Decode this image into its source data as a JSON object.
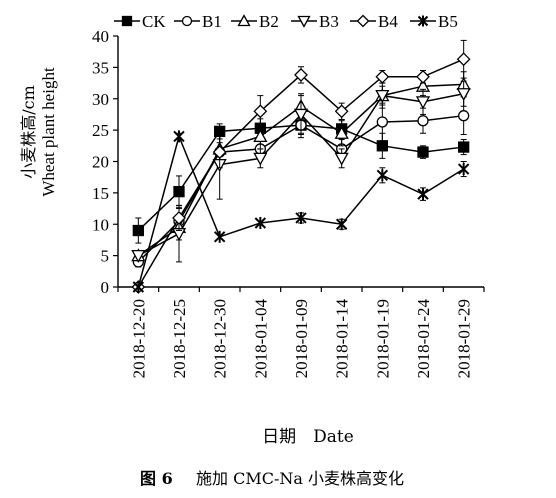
{
  "caption": {
    "figure_no": "图 6",
    "text": "施加 CMC-Na 小麦株高变化"
  },
  "chart_data": {
    "type": "line",
    "xlabel": "日期　Date",
    "ylabel_cn": "小麦株高/cm",
    "ylabel_en": "Wheat plant height",
    "ylim": [
      0,
      40
    ],
    "yticks": [
      0,
      5,
      10,
      15,
      20,
      25,
      30,
      35,
      40
    ],
    "categories": [
      "2018-12-20",
      "2018-12-25",
      "2018-12-30",
      "2018-01-04",
      "2018-01-09",
      "2018-01-14",
      "2018-01-19",
      "2018-01-24",
      "2018-01-29"
    ],
    "legend_position": "top",
    "series": [
      {
        "name": "CK",
        "marker": "square-filled",
        "values": [
          9.0,
          15.2,
          24.8,
          25.3,
          25.8,
          25.2,
          22.5,
          21.5,
          22.3
        ],
        "errors": [
          2.0,
          2.5,
          1.2,
          1.5,
          1.5,
          1.5,
          2.0,
          1.0,
          1.2
        ]
      },
      {
        "name": "B1",
        "marker": "circle-open",
        "values": [
          4.0,
          10.5,
          21.5,
          22.0,
          25.8,
          22.0,
          26.3,
          26.5,
          27.3
        ],
        "errors": [
          0.8,
          2.0,
          1.5,
          1.5,
          2.0,
          1.5,
          3.0,
          2.0,
          3.0
        ]
      },
      {
        "name": "B2",
        "marker": "triangle-up-open",
        "values": [
          5.0,
          9.5,
          22.0,
          24.0,
          28.8,
          24.5,
          30.5,
          32.0,
          32.3
        ],
        "errors": [
          0.8,
          2.0,
          2.0,
          2.0,
          2.0,
          2.0,
          1.5,
          1.5,
          2.0
        ]
      },
      {
        "name": "B3",
        "marker": "triangle-down-open",
        "values": [
          5.0,
          8.5,
          19.5,
          20.5,
          27.5,
          20.5,
          30.5,
          29.5,
          30.8
        ],
        "errors": [
          0.8,
          4.5,
          5.5,
          1.5,
          3.0,
          1.5,
          2.0,
          2.0,
          2.0
        ]
      },
      {
        "name": "B4",
        "marker": "diamond-open",
        "values": [
          0,
          11.0,
          21.5,
          28.0,
          33.8,
          28.0,
          33.5,
          33.5,
          36.3
        ],
        "errors": [
          0,
          2.0,
          2.5,
          2.5,
          1.3,
          1.3,
          1.0,
          1.0,
          3.0
        ]
      },
      {
        "name": "B5",
        "marker": "star",
        "values": [
          0,
          24.0,
          8.0,
          10.2,
          11.0,
          10.0,
          17.8,
          14.8,
          18.8
        ],
        "errors": [
          0,
          0.5,
          0,
          0,
          0.8,
          0.8,
          1.2,
          1.0,
          1.2
        ]
      }
    ]
  }
}
